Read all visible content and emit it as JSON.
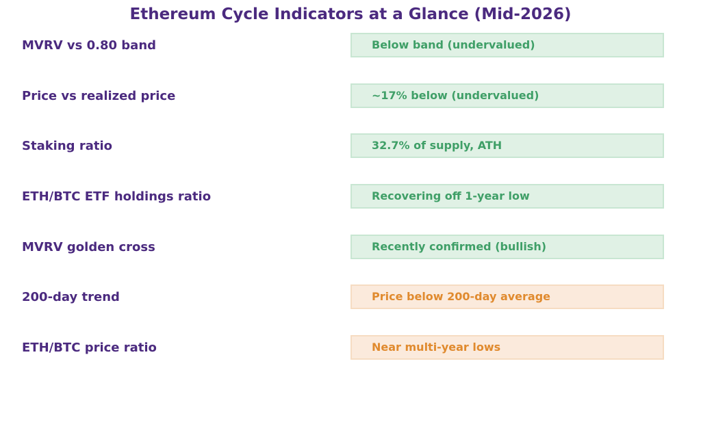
{
  "title": "Ethereum Cycle Indicators at a Glance (Mid-2026)",
  "indicators": [
    {
      "label": "MVRV vs 0.80 band",
      "status": "Below band (undervalued)",
      "tone": "good"
    },
    {
      "label": "Price vs realized price",
      "status": "~17% below (undervalued)",
      "tone": "good"
    },
    {
      "label": "Staking ratio",
      "status": "32.7% of supply, ATH",
      "tone": "good"
    },
    {
      "label": "ETH/BTC ETF holdings ratio",
      "status": "Recovering off 1-year low",
      "tone": "good"
    },
    {
      "label": "MVRV golden cross",
      "status": "Recently confirmed (bullish)",
      "tone": "good"
    },
    {
      "label": "200-day trend",
      "status": "Price below 200-day average",
      "tone": "warn"
    },
    {
      "label": "ETH/BTC price ratio",
      "status": "Near multi-year lows",
      "tone": "warn"
    }
  ],
  "colors": {
    "title": "#4b2a7f",
    "good_text": "#3f9f67",
    "good_fill": "#e0f1e5",
    "warn_text": "#e08a2e",
    "warn_fill": "#fbeadc"
  }
}
